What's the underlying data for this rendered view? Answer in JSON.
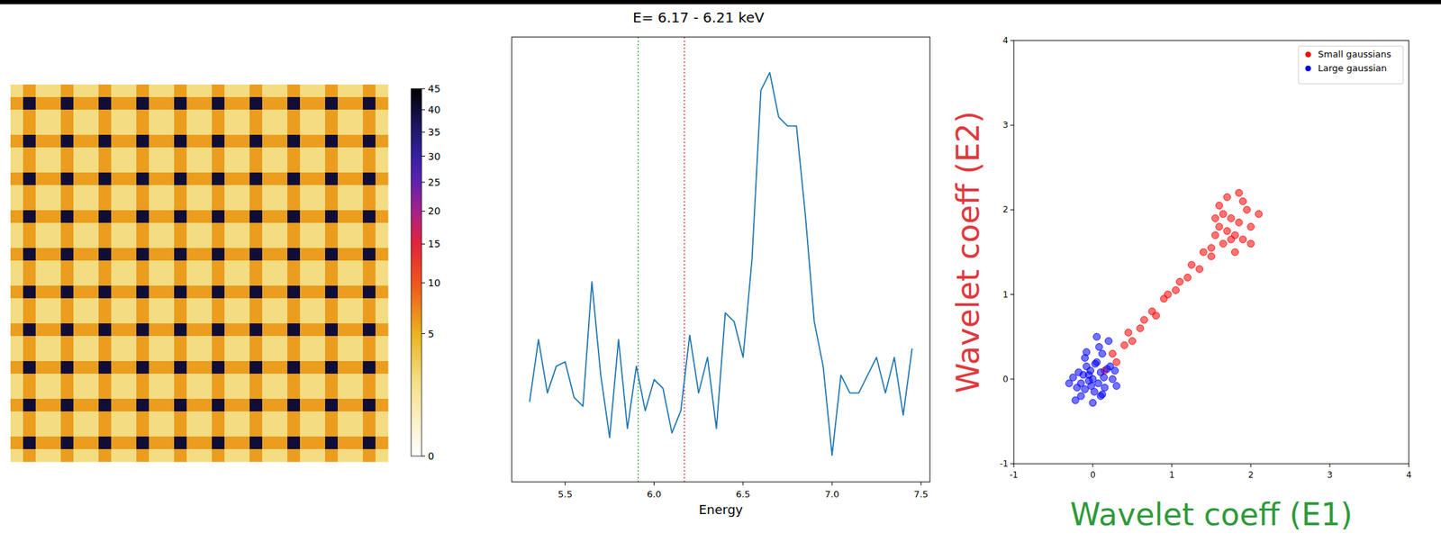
{
  "chart_data": [
    {
      "type": "heatmap",
      "cells": [
        [
          2,
          6,
          2,
          2,
          6,
          2,
          2,
          6,
          2,
          2,
          6,
          2,
          2,
          6,
          2,
          2,
          6,
          2,
          2,
          6,
          2,
          2,
          6,
          2,
          2,
          6,
          2,
          2,
          6,
          2
        ],
        [
          6,
          40,
          6,
          6,
          40,
          6,
          6,
          40,
          6,
          6,
          40,
          6,
          6,
          40,
          6,
          6,
          40,
          6,
          6,
          40,
          6,
          6,
          40,
          6,
          6,
          40,
          6,
          6,
          40,
          6
        ],
        [
          2,
          6,
          2,
          2,
          6,
          2,
          2,
          6,
          2,
          2,
          6,
          2,
          2,
          6,
          2,
          2,
          6,
          2,
          2,
          6,
          2,
          2,
          6,
          2,
          2,
          6,
          2,
          2,
          6,
          2
        ],
        [
          2,
          6,
          2,
          2,
          6,
          2,
          2,
          6,
          2,
          2,
          6,
          2,
          2,
          6,
          2,
          2,
          6,
          2,
          2,
          6,
          2,
          2,
          6,
          2,
          2,
          6,
          2,
          2,
          6,
          2
        ],
        [
          6,
          40,
          6,
          6,
          40,
          6,
          6,
          40,
          6,
          6,
          40,
          6,
          6,
          40,
          6,
          6,
          40,
          6,
          6,
          40,
          6,
          6,
          40,
          6,
          6,
          40,
          6,
          6,
          40,
          6
        ],
        [
          2,
          6,
          2,
          2,
          6,
          2,
          2,
          6,
          2,
          2,
          6,
          2,
          2,
          6,
          2,
          2,
          6,
          2,
          2,
          6,
          2,
          2,
          6,
          2,
          2,
          6,
          2,
          2,
          6,
          2
        ],
        [
          2,
          6,
          2,
          2,
          6,
          2,
          2,
          6,
          2,
          2,
          6,
          2,
          2,
          6,
          2,
          2,
          6,
          2,
          2,
          6,
          2,
          2,
          6,
          2,
          2,
          6,
          2,
          2,
          6,
          2
        ],
        [
          6,
          40,
          6,
          6,
          40,
          6,
          6,
          40,
          6,
          6,
          40,
          6,
          6,
          40,
          6,
          6,
          40,
          6,
          6,
          40,
          6,
          6,
          40,
          6,
          6,
          40,
          6,
          6,
          40,
          6
        ],
        [
          2,
          6,
          2,
          2,
          6,
          2,
          2,
          6,
          2,
          2,
          6,
          2,
          2,
          6,
          2,
          2,
          6,
          2,
          2,
          6,
          2,
          2,
          6,
          2,
          2,
          6,
          2,
          2,
          6,
          2
        ],
        [
          2,
          6,
          2,
          2,
          6,
          2,
          2,
          6,
          2,
          2,
          6,
          2,
          2,
          6,
          2,
          2,
          6,
          2,
          2,
          6,
          2,
          2,
          6,
          2,
          2,
          6,
          2,
          2,
          6,
          2
        ],
        [
          6,
          40,
          6,
          6,
          40,
          6,
          6,
          40,
          6,
          6,
          40,
          6,
          6,
          40,
          6,
          6,
          40,
          6,
          6,
          40,
          6,
          6,
          40,
          6,
          6,
          40,
          6,
          6,
          40,
          6
        ],
        [
          2,
          6,
          2,
          2,
          6,
          2,
          2,
          6,
          2,
          2,
          6,
          2,
          2,
          6,
          2,
          2,
          6,
          2,
          2,
          6,
          2,
          2,
          6,
          2,
          2,
          6,
          2,
          2,
          6,
          2
        ],
        [
          2,
          6,
          2,
          2,
          6,
          2,
          2,
          6,
          2,
          2,
          6,
          2,
          2,
          6,
          2,
          2,
          6,
          2,
          2,
          6,
          2,
          2,
          6,
          2,
          2,
          6,
          2,
          2,
          6,
          2
        ],
        [
          6,
          40,
          6,
          6,
          40,
          6,
          6,
          40,
          6,
          6,
          40,
          6,
          6,
          40,
          6,
          6,
          40,
          6,
          6,
          40,
          6,
          6,
          40,
          6,
          6,
          40,
          6,
          6,
          40,
          6
        ],
        [
          2,
          6,
          2,
          2,
          6,
          2,
          2,
          6,
          2,
          2,
          6,
          2,
          2,
          6,
          2,
          2,
          6,
          2,
          2,
          6,
          2,
          2,
          6,
          2,
          2,
          6,
          2,
          2,
          6,
          2
        ],
        [
          2,
          6,
          2,
          2,
          6,
          2,
          2,
          6,
          2,
          2,
          6,
          2,
          2,
          6,
          2,
          2,
          6,
          2,
          2,
          6,
          2,
          2,
          6,
          2,
          2,
          6,
          2,
          2,
          6,
          2
        ],
        [
          6,
          40,
          6,
          6,
          40,
          6,
          6,
          40,
          6,
          6,
          40,
          6,
          6,
          40,
          6,
          6,
          40,
          6,
          6,
          40,
          6,
          6,
          40,
          6,
          6,
          40,
          6,
          6,
          40,
          6
        ],
        [
          2,
          6,
          2,
          2,
          6,
          2,
          2,
          6,
          2,
          2,
          6,
          2,
          2,
          6,
          2,
          2,
          6,
          2,
          2,
          6,
          2,
          2,
          6,
          2,
          2,
          6,
          2,
          2,
          6,
          2
        ],
        [
          2,
          6,
          2,
          2,
          6,
          2,
          2,
          6,
          2,
          2,
          6,
          2,
          2,
          6,
          2,
          2,
          6,
          2,
          2,
          6,
          2,
          2,
          6,
          2,
          2,
          6,
          2,
          2,
          6,
          2
        ],
        [
          6,
          40,
          6,
          6,
          40,
          6,
          6,
          40,
          6,
          6,
          40,
          6,
          6,
          40,
          6,
          6,
          40,
          6,
          6,
          40,
          6,
          6,
          40,
          6,
          6,
          40,
          6,
          6,
          40,
          6
        ],
        [
          2,
          6,
          2,
          2,
          6,
          2,
          2,
          6,
          2,
          2,
          6,
          2,
          2,
          6,
          2,
          2,
          6,
          2,
          2,
          6,
          2,
          2,
          6,
          2,
          2,
          6,
          2,
          2,
          6,
          2
        ],
        [
          2,
          6,
          2,
          2,
          6,
          2,
          2,
          6,
          2,
          2,
          6,
          2,
          2,
          6,
          2,
          2,
          6,
          2,
          2,
          6,
          2,
          2,
          6,
          2,
          2,
          6,
          2,
          2,
          6,
          2
        ],
        [
          6,
          40,
          6,
          6,
          40,
          6,
          6,
          40,
          6,
          6,
          40,
          6,
          6,
          40,
          6,
          6,
          40,
          6,
          6,
          40,
          6,
          6,
          40,
          6,
          6,
          40,
          6,
          6,
          40,
          6
        ],
        [
          2,
          6,
          2,
          2,
          6,
          2,
          2,
          6,
          2,
          2,
          6,
          2,
          2,
          6,
          2,
          2,
          6,
          2,
          2,
          6,
          2,
          2,
          6,
          2,
          2,
          6,
          2,
          2,
          6,
          2
        ],
        [
          2,
          6,
          2,
          2,
          6,
          2,
          2,
          6,
          2,
          2,
          6,
          2,
          2,
          6,
          2,
          2,
          6,
          2,
          2,
          6,
          2,
          2,
          6,
          2,
          2,
          6,
          2,
          2,
          6,
          2
        ],
        [
          6,
          40,
          6,
          6,
          40,
          6,
          6,
          40,
          6,
          6,
          40,
          6,
          6,
          40,
          6,
          6,
          40,
          6,
          6,
          40,
          6,
          6,
          40,
          6,
          6,
          40,
          6,
          6,
          40,
          6
        ],
        [
          2,
          6,
          2,
          2,
          6,
          2,
          2,
          6,
          2,
          2,
          6,
          2,
          2,
          6,
          2,
          2,
          6,
          2,
          2,
          6,
          2,
          2,
          6,
          2,
          2,
          6,
          2,
          2,
          6,
          2
        ],
        [
          2,
          6,
          2,
          2,
          6,
          2,
          2,
          6,
          2,
          2,
          6,
          2,
          2,
          6,
          2,
          2,
          6,
          2,
          2,
          6,
          2,
          2,
          6,
          2,
          2,
          6,
          2,
          2,
          6,
          2
        ],
        [
          6,
          40,
          6,
          6,
          40,
          6,
          6,
          40,
          6,
          6,
          40,
          6,
          6,
          40,
          6,
          6,
          40,
          6,
          6,
          40,
          6,
          6,
          40,
          6,
          6,
          40,
          6,
          6,
          40,
          6
        ],
        [
          2,
          6,
          2,
          2,
          6,
          2,
          2,
          6,
          2,
          2,
          6,
          2,
          2,
          6,
          2,
          2,
          6,
          2,
          2,
          6,
          2,
          2,
          6,
          2,
          2,
          6,
          2,
          2,
          6,
          2
        ]
      ],
      "colorbar": {
        "range": [
          0,
          45
        ],
        "ticks": [
          0,
          5,
          10,
          15,
          20,
          25,
          30,
          35,
          40,
          45
        ]
      },
      "tick_labels": false
    },
    {
      "type": "line",
      "title": "E= 6.17 - 6.21 keV",
      "x_label": "Energy",
      "x": [
        5.3,
        5.35,
        5.4,
        5.45,
        5.5,
        5.55,
        5.6,
        5.65,
        5.7,
        5.75,
        5.8,
        5.85,
        5.9,
        5.95,
        6.0,
        6.05,
        6.1,
        6.15,
        6.2,
        6.25,
        6.3,
        6.35,
        6.4,
        6.45,
        6.5,
        6.55,
        6.6,
        6.65,
        6.7,
        6.75,
        6.8,
        6.85,
        6.9,
        6.95,
        7.0,
        7.05,
        7.1,
        7.15,
        7.2,
        7.25,
        7.3,
        7.35,
        7.4,
        7.45
      ],
      "values": [
        9,
        16,
        10,
        13,
        13.5,
        9.5,
        8.5,
        22.5,
        12,
        5,
        16,
        6,
        13,
        8,
        11.5,
        10.5,
        5.5,
        8,
        16.5,
        10,
        14,
        6,
        19,
        18,
        14,
        25,
        44,
        46,
        41,
        40,
        40,
        30,
        18,
        13,
        3,
        12,
        10,
        10,
        12,
        14,
        10,
        14,
        7.5,
        15
      ],
      "color": "#1f77b4",
      "xlim": [
        5.2,
        7.55
      ],
      "ylim": [
        0,
        50
      ],
      "xticks": [
        5.5,
        {
          "value": 6,
          "label": "6.0"
        },
        6.5,
        {
          "value": 7,
          "label": "7.0"
        },
        7.5
      ],
      "tick_labels": "x",
      "vlines": [
        {
          "value": 5.91,
          "color": "#2ca02c"
        },
        {
          "value": 6.17,
          "color": "#d62728"
        }
      ]
    },
    {
      "type": "scatter",
      "x_label": "Wavelet coeff (E1)",
      "y_label": "Wavelet coeff (E2)",
      "series": [
        {
          "name": "Small gaussians",
          "color": "#ff0000",
          "x": [
            0.15,
            0.25,
            0.3,
            0.4,
            0.45,
            0.5,
            0.6,
            0.65,
            0.75,
            0.8,
            0.9,
            0.95,
            1.05,
            1.1,
            1.2,
            1.25,
            1.35,
            1.4,
            1.5,
            1.55,
            1.6,
            1.65,
            1.7,
            1.75,
            1.8,
            1.85,
            1.9,
            1.95,
            2.0,
            2.1,
            1.5,
            1.6,
            1.7,
            1.8,
            1.9,
            2.0,
            1.65,
            1.75,
            1.85,
            1.55
          ],
          "values": [
            0.1,
            0.3,
            0.2,
            0.4,
            0.55,
            0.45,
            0.6,
            0.7,
            0.8,
            0.75,
            0.95,
            1.0,
            1.05,
            1.15,
            1.2,
            1.35,
            1.3,
            1.5,
            1.55,
            1.7,
            1.8,
            1.6,
            1.75,
            1.9,
            1.7,
            1.85,
            1.65,
            2.0,
            1.8,
            1.95,
            1.45,
            2.05,
            2.15,
            1.5,
            2.1,
            1.6,
            1.95,
            1.65,
            2.2,
            1.9
          ]
        },
        {
          "name": "Large gaussian",
          "color": "#0000ff",
          "x": [
            -0.3,
            -0.25,
            -0.2,
            -0.18,
            -0.15,
            -0.12,
            -0.1,
            -0.08,
            -0.05,
            -0.03,
            0,
            0.02,
            0.05,
            0.07,
            0.1,
            0.12,
            0.15,
            0.18,
            0.2,
            0.25,
            0.3,
            -0.22,
            -0.1,
            0.0,
            0.08,
            0.14,
            -0.05,
            0.03,
            0.1,
            -0.15,
            0.22,
            0.05,
            -0.02,
            0.12,
            0.28,
            -0.08
          ],
          "values": [
            -0.05,
            0.02,
            -0.1,
            0.08,
            -0.2,
            0.05,
            -0.12,
            0.15,
            -0.02,
            0.1,
            0.0,
            -0.15,
            0.2,
            -0.05,
            0.08,
            0.3,
            -0.1,
            0.12,
            0.45,
            0.0,
            -0.08,
            -0.25,
            0.25,
            -0.28,
            0.38,
            0.02,
            0.05,
            0.18,
            -0.2,
            -0.05,
            0.15,
            0.5,
            -0.08,
            -0.18,
            0.1,
            0.32
          ]
        }
      ],
      "xlim": [
        -1,
        4
      ],
      "ylim": [
        -1,
        4
      ],
      "xticks": [
        -1,
        0,
        1,
        2,
        3,
        4
      ],
      "yticks": [
        -1,
        0,
        1,
        2,
        3,
        4
      ],
      "legend": "upper right",
      "marker": "circle"
    }
  ]
}
